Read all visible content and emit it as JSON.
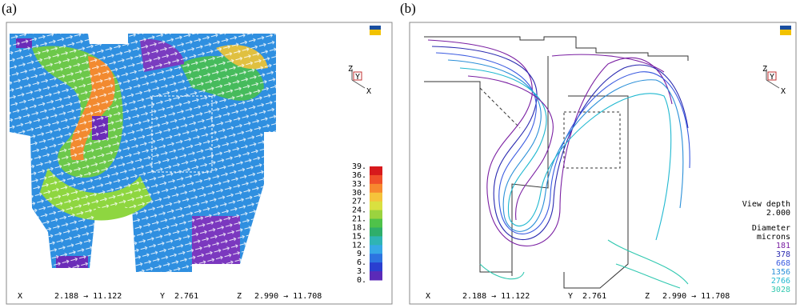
{
  "panels": [
    {
      "label": "(a)",
      "triad": {
        "z": "Z",
        "y": "Y",
        "x": "X"
      },
      "colorbar": {
        "ticks": [
          "39.",
          "36.",
          "33.",
          "30.",
          "27.",
          "24.",
          "21.",
          "18.",
          "15.",
          "12.",
          "9.",
          "6.",
          "3.",
          "0."
        ],
        "colors": [
          "#d7191c",
          "#f0502a",
          "#f7892f",
          "#f5c33b",
          "#d9e040",
          "#9bd33f",
          "#4fc24a",
          "#2fae6a",
          "#2fb4b4",
          "#37a8e6",
          "#2d74e0",
          "#2a3fd0",
          "#5b2ab8"
        ]
      },
      "footer": {
        "x": "X",
        "x_range": "2.188 → 11.122",
        "y": "Y",
        "y_value": "2.761",
        "z": "Z",
        "z_range": "2.990 → 11.708"
      }
    },
    {
      "label": "(b)",
      "triad": {
        "z": "Z",
        "y": "Y",
        "x": "X"
      },
      "view_depth": {
        "title": "View depth",
        "value": "2.000"
      },
      "legend": {
        "title": "Diameter",
        "unit": "microns",
        "items": [
          {
            "label": "181",
            "color": "#7a1fa2"
          },
          {
            "label": "378",
            "color": "#2a2ab0"
          },
          {
            "label": "668",
            "color": "#3a5ae0"
          },
          {
            "label": "1356",
            "color": "#2a8fd8"
          },
          {
            "label": "2766",
            "color": "#20b8d0"
          },
          {
            "label": "3028",
            "color": "#30c8b0"
          }
        ]
      },
      "footer": {
        "x": "X",
        "x_range": "2.188 → 11.122",
        "y": "Y",
        "y_value": "2.761",
        "z": "Z",
        "z_range": "2.990 → 11.708"
      }
    }
  ]
}
